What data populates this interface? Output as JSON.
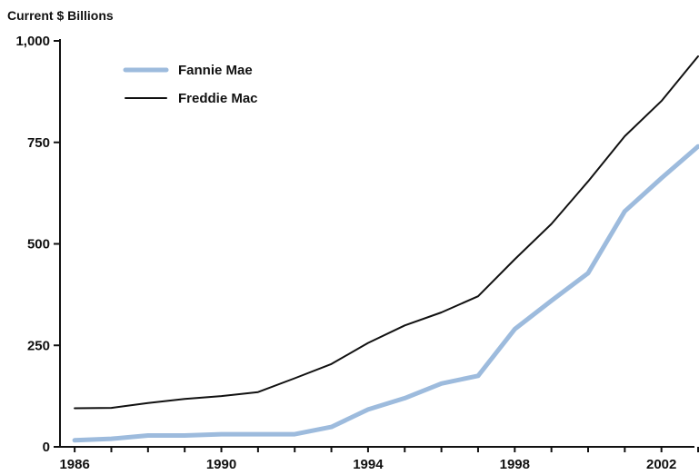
{
  "chart_data": {
    "type": "line",
    "unit_label": "Current $ Billions",
    "title": "",
    "xlabel": "",
    "ylabel": "",
    "xlim": [
      1985.6,
      2002.9
    ],
    "ylim": [
      0,
      1000
    ],
    "x_ticks": [
      1986,
      1987,
      1988,
      1989,
      1990,
      1991,
      1992,
      1993,
      1994,
      1995,
      1996,
      1997,
      1998,
      1999,
      2000,
      2001,
      2002,
      2003
    ],
    "x_tick_labels": [
      {
        "x": 1986,
        "label": "1986"
      },
      {
        "x": 1990,
        "label": "1990"
      },
      {
        "x": 1994,
        "label": "1994"
      },
      {
        "x": 1998,
        "label": "1998"
      },
      {
        "x": 2002,
        "label": "2002"
      }
    ],
    "y_ticks": [
      {
        "value": 0,
        "label": "0"
      },
      {
        "value": 250,
        "label": "250"
      },
      {
        "value": 500,
        "label": "500"
      },
      {
        "value": 750,
        "label": "750"
      },
      {
        "value": 1000,
        "label": "1,000"
      }
    ],
    "grid": false,
    "legend_position": "top-left",
    "x": [
      1986,
      1987,
      1988,
      1989,
      1990,
      1991,
      1992,
      1993,
      1994,
      1995,
      1996,
      1997,
      1998,
      1999,
      2000,
      2001,
      2002,
      2003
    ],
    "series": [
      {
        "name": "Fannie Mae",
        "color": "#9dbbdd",
        "values": [
          16,
          20,
          28,
          28,
          31,
          31,
          31,
          49,
          92,
          120,
          156,
          175,
          290,
          360,
          428,
          580,
          662,
          740
        ]
      },
      {
        "name": "Freddie Mac",
        "color": "#111111",
        "values": [
          95,
          96,
          108,
          118,
          125,
          135,
          169,
          204,
          256,
          299,
          331,
          371,
          462,
          549,
          654,
          765,
          852,
          962
        ]
      }
    ]
  }
}
